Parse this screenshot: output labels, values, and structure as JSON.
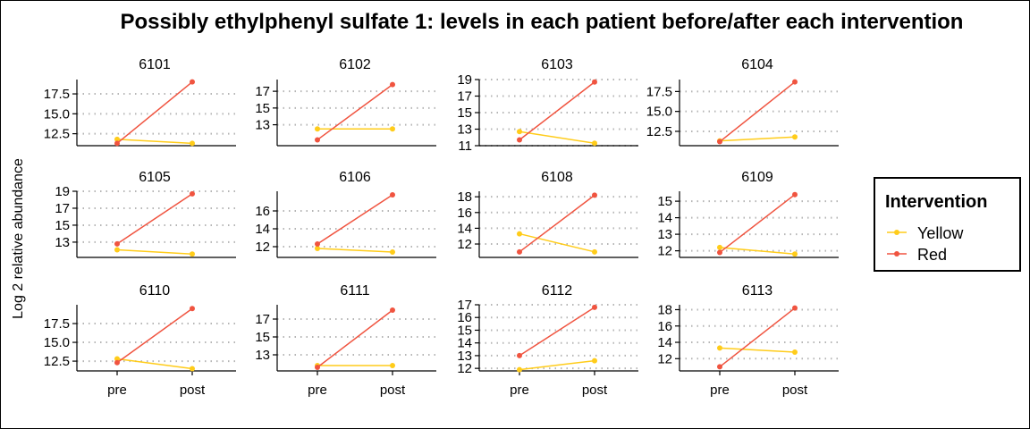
{
  "chart_data": {
    "type": "line",
    "title": "Possibly ethylphenyl sulfate 1: levels in each patient before/after each intervention",
    "ylabel": "Log 2 relative abundance",
    "xlabel": "",
    "categories": [
      "pre",
      "post"
    ],
    "grid": "horizontal dotted",
    "legend": {
      "title": "Intervention",
      "position": "right",
      "items": [
        {
          "name": "Yellow",
          "color": "#FFCC1A"
        },
        {
          "name": "Red",
          "color": "#F05440"
        }
      ]
    },
    "panels": [
      {
        "id": "6101",
        "ylim": [
          11.0,
          19.3
        ],
        "ticks": [
          12.5,
          15.0,
          17.5
        ],
        "tick_labels": [
          "12.5",
          "15.0",
          "17.5"
        ],
        "series": [
          {
            "name": "Yellow",
            "values": [
              11.8,
              11.3
            ]
          },
          {
            "name": "Red",
            "values": [
              11.3,
              19.0
            ]
          }
        ]
      },
      {
        "id": "6102",
        "ylim": [
          10.5,
          18.4
        ],
        "ticks": [
          13,
          15,
          17
        ],
        "tick_labels": [
          "13",
          "15",
          "17"
        ],
        "series": [
          {
            "name": "Yellow",
            "values": [
              12.5,
              12.5
            ]
          },
          {
            "name": "Red",
            "values": [
              11.2,
              17.8
            ]
          }
        ]
      },
      {
        "id": "6103",
        "ylim": [
          11.0,
          19.0
        ],
        "ticks": [
          11,
          13,
          15,
          17,
          19
        ],
        "tick_labels": [
          "11",
          "13",
          "15",
          "17",
          "19"
        ],
        "series": [
          {
            "name": "Yellow",
            "values": [
              12.7,
              11.3
            ]
          },
          {
            "name": "Red",
            "values": [
              11.7,
              18.7
            ]
          }
        ]
      },
      {
        "id": "6104",
        "ylim": [
          10.7,
          19.0
        ],
        "ticks": [
          12.5,
          15.0,
          17.5
        ],
        "tick_labels": [
          "12.5",
          "15.0",
          "17.5"
        ],
        "series": [
          {
            "name": "Yellow",
            "values": [
              11.3,
              11.8
            ]
          },
          {
            "name": "Red",
            "values": [
              11.2,
              18.7
            ]
          }
        ]
      },
      {
        "id": "6105",
        "ylim": [
          11.2,
          19.0
        ],
        "ticks": [
          13,
          15,
          17,
          19
        ],
        "tick_labels": [
          "13",
          "15",
          "17",
          "19"
        ],
        "series": [
          {
            "name": "Yellow",
            "values": [
              12.1,
              11.6
            ]
          },
          {
            "name": "Red",
            "values": [
              12.8,
              18.7
            ]
          }
        ]
      },
      {
        "id": "6106",
        "ylim": [
          10.8,
          18.2
        ],
        "ticks": [
          12,
          14,
          16
        ],
        "tick_labels": [
          "12",
          "14",
          "16"
        ],
        "series": [
          {
            "name": "Yellow",
            "values": [
              11.8,
              11.4
            ]
          },
          {
            "name": "Red",
            "values": [
              12.3,
              17.8
            ]
          }
        ]
      },
      {
        "id": "6108",
        "ylim": [
          10.3,
          18.7
        ],
        "ticks": [
          12,
          14,
          16,
          18
        ],
        "tick_labels": [
          "12",
          "14",
          "16",
          "18"
        ],
        "series": [
          {
            "name": "Yellow",
            "values": [
              13.3,
              11.0
            ]
          },
          {
            "name": "Red",
            "values": [
              11.0,
              18.2
            ]
          }
        ]
      },
      {
        "id": "6109",
        "ylim": [
          11.6,
          15.6
        ],
        "ticks": [
          12,
          13,
          14,
          15
        ],
        "tick_labels": [
          "12",
          "13",
          "14",
          "15"
        ],
        "series": [
          {
            "name": "Yellow",
            "values": [
              12.2,
              11.8
            ]
          },
          {
            "name": "Red",
            "values": [
              11.9,
              15.4
            ]
          }
        ]
      },
      {
        "id": "6110",
        "ylim": [
          11.2,
          20.0
        ],
        "ticks": [
          12.5,
          15.0,
          17.5
        ],
        "tick_labels": [
          "12.5",
          "15.0",
          "17.5"
        ],
        "series": [
          {
            "name": "Yellow",
            "values": [
              12.8,
              11.5
            ]
          },
          {
            "name": "Red",
            "values": [
              12.3,
              19.5
            ]
          }
        ]
      },
      {
        "id": "6111",
        "ylim": [
          11.2,
          18.6
        ],
        "ticks": [
          13,
          15,
          17
        ],
        "tick_labels": [
          "13",
          "15",
          "17"
        ],
        "series": [
          {
            "name": "Yellow",
            "values": [
              11.8,
              11.8
            ]
          },
          {
            "name": "Red",
            "values": [
              11.6,
              18.0
            ]
          }
        ]
      },
      {
        "id": "6112",
        "ylim": [
          11.8,
          17.0
        ],
        "ticks": [
          12,
          13,
          14,
          15,
          16,
          17
        ],
        "tick_labels": [
          "12",
          "13",
          "14",
          "15",
          "16",
          "17"
        ],
        "series": [
          {
            "name": "Yellow",
            "values": [
              11.9,
              12.6
            ]
          },
          {
            "name": "Red",
            "values": [
              13.0,
              16.8
            ]
          }
        ]
      },
      {
        "id": "6113",
        "ylim": [
          10.5,
          18.6
        ],
        "ticks": [
          12,
          14,
          16,
          18
        ],
        "tick_labels": [
          "12",
          "14",
          "16",
          "18"
        ],
        "series": [
          {
            "name": "Yellow",
            "values": [
              13.3,
              12.8
            ]
          },
          {
            "name": "Red",
            "values": [
              11.0,
              18.2
            ]
          }
        ]
      }
    ]
  }
}
